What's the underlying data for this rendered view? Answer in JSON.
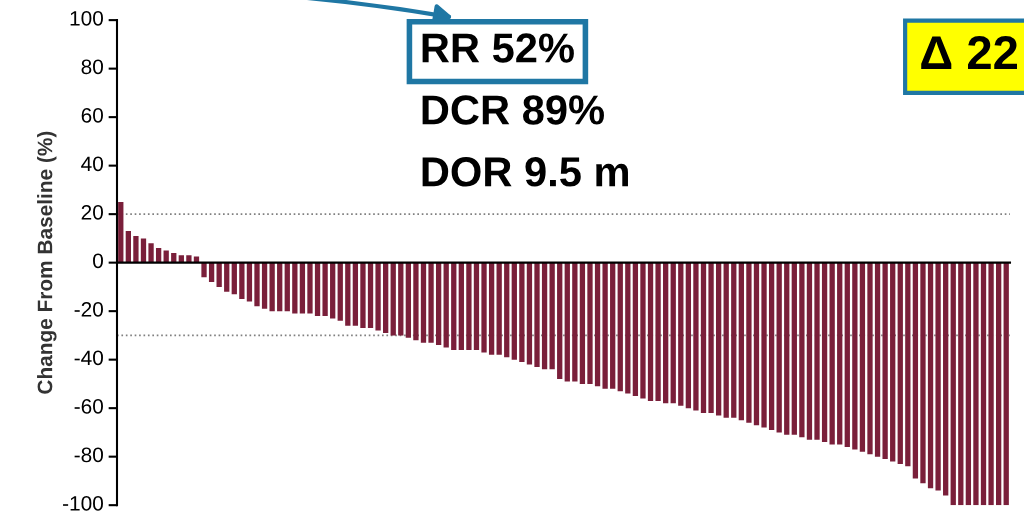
{
  "chart_data": {
    "type": "bar",
    "ylabel": "Change From Baseline (%)",
    "categories": [
      null,
      null,
      null,
      null,
      null,
      null,
      null,
      null,
      null,
      null,
      null,
      null,
      null,
      null,
      null,
      null,
      null,
      null,
      null,
      null,
      null,
      null,
      null,
      null,
      null,
      null,
      null,
      null,
      null,
      null,
      null,
      null,
      null,
      null,
      null,
      null,
      null,
      null,
      null,
      null,
      null,
      null,
      null,
      null,
      null,
      null,
      null,
      null,
      null,
      null,
      null,
      null,
      null,
      null,
      null,
      null,
      null,
      null,
      null,
      null,
      null,
      null,
      null,
      null,
      null,
      null,
      null,
      null,
      null,
      null,
      null,
      null,
      null,
      null,
      null,
      null,
      null,
      null,
      null,
      null,
      null,
      null,
      null,
      null,
      null,
      null,
      null,
      null,
      null,
      null,
      null,
      null,
      null,
      null,
      null,
      null,
      null,
      null,
      null,
      null,
      null,
      null,
      null,
      null,
      null,
      null,
      null,
      null,
      null,
      null,
      null,
      null,
      null,
      null,
      null,
      null,
      null,
      null
    ],
    "values": [
      25,
      13,
      11,
      10,
      8,
      6,
      5,
      4,
      3,
      3,
      2.5,
      -6,
      -8,
      -10,
      -12,
      -13,
      -15,
      -16,
      -18,
      -19,
      -20,
      -20,
      -20,
      -21,
      -21,
      -21,
      -22,
      -22,
      -23,
      -24,
      -26,
      -26,
      -27,
      -27,
      -28,
      -29,
      -30,
      -30,
      -31,
      -32,
      -33,
      -33,
      -34,
      -35,
      -36,
      -36,
      -36,
      -36,
      -37,
      -38,
      -38,
      -39,
      -40,
      -41,
      -42,
      -43,
      -44,
      -44,
      -48,
      -49,
      -49,
      -50,
      -50,
      -51,
      -52,
      -52,
      -53,
      -54,
      -55,
      -56,
      -57,
      -57,
      -58,
      -58,
      -59,
      -60,
      -61,
      -62,
      -62,
      -63,
      -64,
      -64,
      -65,
      -66,
      -67,
      -68,
      -69,
      -70,
      -71,
      -71,
      -72,
      -73,
      -73,
      -74,
      -75,
      -75,
      -76,
      -77,
      -78,
      -79,
      -80,
      -81,
      -82,
      -83,
      -84,
      -89,
      -91,
      -93,
      -94,
      -96,
      -100,
      -100,
      -100,
      -100,
      -100,
      -100,
      -100,
      -100
    ],
    "color": "#7a1f3a",
    "ylim": [
      -100,
      100
    ],
    "yticks": [
      -100,
      -80,
      -60,
      -40,
      -20,
      0,
      20,
      40,
      60,
      80,
      100
    ],
    "tick_labels": "y",
    "ref_lines": [
      {
        "axis": "y",
        "value": 20,
        "color": "#808080",
        "line_style": "dotted"
      },
      {
        "axis": "y",
        "value": -30,
        "color": "#808080",
        "line_style": "dotted"
      }
    ],
    "annotations": [
      "RR 52%",
      "DCR 89%",
      "DOR 9.5 m",
      "Δ 22"
    ]
  }
}
